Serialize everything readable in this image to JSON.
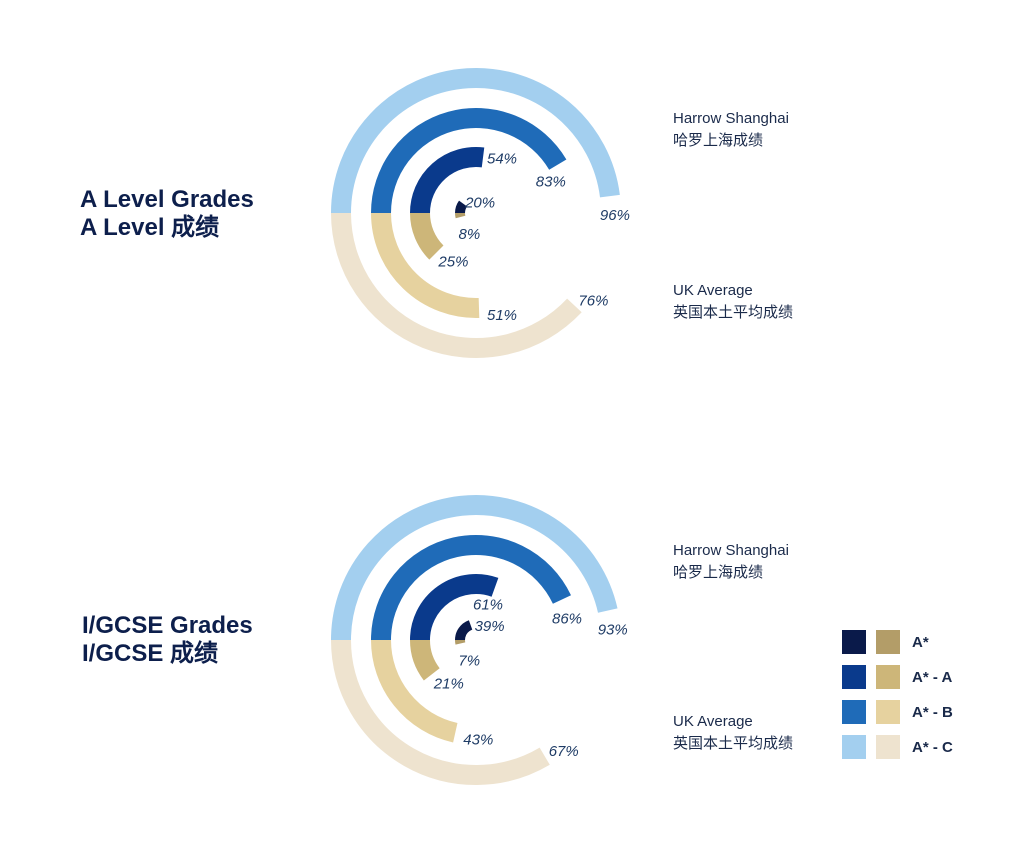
{
  "colors": {
    "harrow": [
      "#0a1a4a",
      "#0a3a8c",
      "#1f6bb8",
      "#a3cfef"
    ],
    "uk": [
      "#b39d68",
      "#cdb679",
      "#e6d29f",
      "#eee3cf"
    ],
    "text": "#1f3c66"
  },
  "legend": {
    "items": [
      {
        "label": "A*"
      },
      {
        "label": "A* - A"
      },
      {
        "label": "A* - B"
      },
      {
        "label": "A* - C"
      }
    ]
  },
  "chart_data": [
    {
      "type": "radial_bar",
      "title_lines": [
        "A Level Grades",
        "A Level  成绩"
      ],
      "categories": [
        "A*",
        "A* - A",
        "A* - B",
        "A* - C"
      ],
      "series": [
        {
          "name_lines": [
            "Harrow Shanghai",
            "哈罗上海成绩"
          ],
          "values": [
            20,
            54,
            83,
            96
          ],
          "labels": [
            "20%",
            "54%",
            "83%",
            "96%"
          ]
        },
        {
          "name_lines": [
            "UK Average",
            "英国本土平均成绩"
          ],
          "values": [
            8,
            25,
            51,
            76
          ],
          "labels": [
            "8%",
            "25%",
            "51%",
            "76%"
          ]
        }
      ]
    },
    {
      "type": "radial_bar",
      "title_lines": [
        "I/GCSE Grades",
        "I/GCSE 成绩"
      ],
      "categories": [
        "A*",
        "A* - A",
        "A* - B",
        "A* - C"
      ],
      "series": [
        {
          "name_lines": [
            "Harrow Shanghai",
            "哈罗上海成绩"
          ],
          "values": [
            39,
            61,
            86,
            93
          ],
          "labels": [
            "39%",
            "61%",
            "86%",
            "93%"
          ]
        },
        {
          "name_lines": [
            "UK Average",
            "英国本土平均成绩"
          ],
          "values": [
            7,
            21,
            43,
            67
          ],
          "labels": [
            "7%",
            "21%",
            "43%",
            "67%"
          ]
        }
      ]
    }
  ]
}
